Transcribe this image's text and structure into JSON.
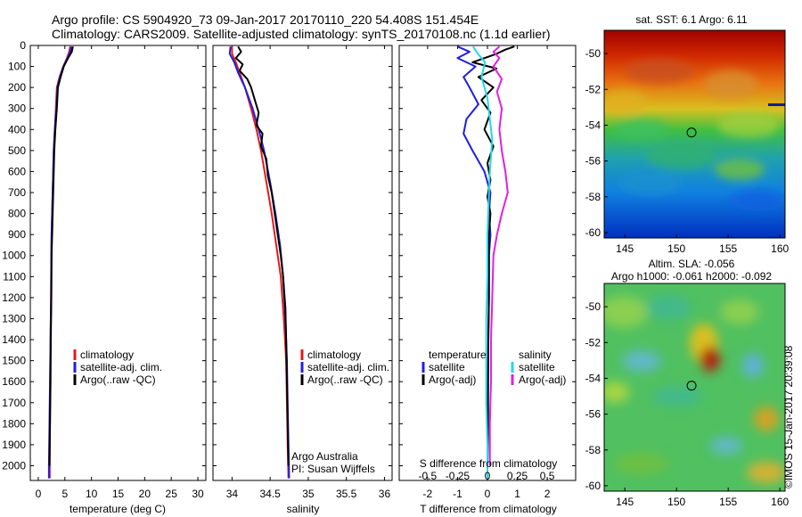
{
  "header": {
    "title_line1": "Argo profile: CS 5904920_73 09-Jan-2017 20170110_220 54.408S 151.454E",
    "title_line2": "Climatology: CARS2009. Satellite-adjusted climatology: synTS_20170108.nc (1.1d earlier)"
  },
  "credits": {
    "argo_australia": "Argo Australia",
    "pi": "PI: Susan Wijffels",
    "imos_stamp": "©IMOS 15-Jan-2017 20:39:08"
  },
  "depth_axis": {
    "ticks": [
      0,
      100,
      200,
      300,
      400,
      500,
      600,
      700,
      800,
      900,
      1000,
      1100,
      1200,
      1300,
      1400,
      1500,
      1600,
      1700,
      1800,
      1900,
      2000
    ],
    "range": [
      0,
      2070
    ]
  },
  "colors": {
    "climatology": "#e31a1c",
    "satellite_adj": "#1f1fe0",
    "argo": "#000000",
    "satellite_sal": "#22d8e8",
    "argo_sal": "#e020e0"
  },
  "chart_data": [
    {
      "type": "line",
      "id": "temperature",
      "xlabel": "temperature (deg C)",
      "xlim": [
        -1.5,
        31.5
      ],
      "xticks": [
        "0",
        "5",
        "10",
        "15",
        "20",
        "25",
        "30"
      ],
      "xtick_values": [
        0,
        5,
        10,
        15,
        20,
        25,
        30
      ],
      "ylim": [
        0,
        2070
      ],
      "y_reversed": true,
      "legend": [
        "climatology",
        "satellite-adj. clim.",
        "Argo(..raw -QC)"
      ],
      "series": [
        {
          "name": "climatology",
          "color": "#e31a1c",
          "points": [
            [
              6.0,
              5
            ],
            [
              5.8,
              30
            ],
            [
              5.4,
              60
            ],
            [
              4.7,
              100
            ],
            [
              4.0,
              150
            ],
            [
              3.5,
              200
            ],
            [
              3.3,
              300
            ],
            [
              3.1,
              400
            ],
            [
              2.9,
              500
            ],
            [
              2.8,
              600
            ],
            [
              2.7,
              700
            ],
            [
              2.6,
              800
            ],
            [
              2.5,
              900
            ],
            [
              2.45,
              1000
            ],
            [
              2.4,
              1200
            ],
            [
              2.3,
              1400
            ],
            [
              2.25,
              1600
            ],
            [
              2.2,
              1800
            ],
            [
              2.15,
              2000
            ],
            [
              2.15,
              2060
            ]
          ]
        },
        {
          "name": "satellite-adj. clim.",
          "color": "#1f1fe0",
          "points": [
            [
              6.2,
              5
            ],
            [
              6.0,
              30
            ],
            [
              5.5,
              60
            ],
            [
              4.7,
              100
            ],
            [
              4.1,
              150
            ],
            [
              3.6,
              200
            ],
            [
              3.4,
              300
            ],
            [
              3.1,
              400
            ],
            [
              2.9,
              500
            ],
            [
              2.8,
              600
            ],
            [
              2.7,
              700
            ],
            [
              2.6,
              800
            ],
            [
              2.5,
              900
            ],
            [
              2.45,
              1000
            ],
            [
              2.4,
              1200
            ],
            [
              2.3,
              1400
            ],
            [
              2.2,
              1600
            ],
            [
              2.1,
              1800
            ],
            [
              2.0,
              2000
            ],
            [
              2.0,
              2060
            ]
          ]
        },
        {
          "name": "Argo(..raw -QC)",
          "color": "#000000",
          "points": [
            [
              6.5,
              5
            ],
            [
              6.3,
              30
            ],
            [
              5.6,
              60
            ],
            [
              4.8,
              100
            ],
            [
              4.2,
              150
            ],
            [
              3.7,
              200
            ],
            [
              3.5,
              300
            ],
            [
              3.2,
              400
            ],
            [
              3.0,
              500
            ],
            [
              2.9,
              600
            ],
            [
              2.8,
              700
            ],
            [
              2.7,
              800
            ],
            [
              2.6,
              900
            ],
            [
              2.5,
              1000
            ],
            [
              2.45,
              1200
            ],
            [
              2.35,
              1400
            ],
            [
              2.3,
              1600
            ],
            [
              2.2,
              1800
            ],
            [
              2.1,
              2000
            ]
          ]
        }
      ]
    },
    {
      "type": "line",
      "id": "salinity",
      "xlabel": "salinity",
      "xlim": [
        33.75,
        36.1
      ],
      "xticks": [
        "34",
        "34.5",
        "35",
        "35.5",
        "36"
      ],
      "xtick_values": [
        34,
        34.5,
        35,
        35.5,
        36
      ],
      "ylim": [
        0,
        2070
      ],
      "y_reversed": true,
      "legend": [
        "climatology",
        "satellite-adj. clim.",
        "Argo(..raw -QC)"
      ],
      "series": [
        {
          "name": "climatology",
          "color": "#e31a1c",
          "points": [
            [
              34.0,
              5
            ],
            [
              34.0,
              40
            ],
            [
              34.05,
              80
            ],
            [
              34.1,
              130
            ],
            [
              34.17,
              200
            ],
            [
              34.25,
              300
            ],
            [
              34.32,
              400
            ],
            [
              34.38,
              500
            ],
            [
              34.45,
              650
            ],
            [
              34.52,
              800
            ],
            [
              34.58,
              950
            ],
            [
              34.64,
              1100
            ],
            [
              34.68,
              1300
            ],
            [
              34.71,
              1500
            ],
            [
              34.72,
              1700
            ],
            [
              34.73,
              1900
            ],
            [
              34.74,
              2060
            ]
          ]
        },
        {
          "name": "satellite-adj. clim.",
          "color": "#1f1fe0",
          "points": [
            [
              33.98,
              5
            ],
            [
              33.97,
              40
            ],
            [
              34.03,
              80
            ],
            [
              34.08,
              130
            ],
            [
              34.17,
              200
            ],
            [
              34.27,
              300
            ],
            [
              34.35,
              400
            ],
            [
              34.42,
              500
            ],
            [
              34.5,
              650
            ],
            [
              34.57,
              800
            ],
            [
              34.63,
              950
            ],
            [
              34.67,
              1100
            ],
            [
              34.7,
              1300
            ],
            [
              34.72,
              1500
            ],
            [
              34.73,
              1700
            ],
            [
              34.74,
              1900
            ],
            [
              34.75,
              2060
            ]
          ]
        },
        {
          "name": "Argo(..raw -QC)",
          "color": "#000000",
          "points": [
            [
              34.08,
              5
            ],
            [
              34.12,
              30
            ],
            [
              34.05,
              60
            ],
            [
              34.14,
              90
            ],
            [
              34.1,
              120
            ],
            [
              34.2,
              160
            ],
            [
              34.25,
              200
            ],
            [
              34.3,
              260
            ],
            [
              34.35,
              320
            ],
            [
              34.32,
              380
            ],
            [
              34.4,
              420
            ],
            [
              34.38,
              480
            ],
            [
              34.45,
              540
            ],
            [
              34.47,
              620
            ],
            [
              34.52,
              700
            ],
            [
              34.56,
              800
            ],
            [
              34.6,
              900
            ],
            [
              34.64,
              1000
            ],
            [
              34.67,
              1100
            ],
            [
              34.7,
              1250
            ],
            [
              34.71,
              1400
            ],
            [
              34.72,
              1600
            ],
            [
              34.73,
              1800
            ],
            [
              34.74,
              2000
            ]
          ]
        }
      ]
    },
    {
      "type": "line",
      "id": "difference",
      "xlabel": "T difference from climatology",
      "xlim": [
        -2.95,
        2.95
      ],
      "xticks": [
        "-2",
        "-1",
        "0",
        "1",
        "2"
      ],
      "xtick_values": [
        -2,
        -1,
        0,
        1,
        2
      ],
      "x2label": "S difference from climatology",
      "x2ticks": [
        "-0.5",
        "-0.25",
        "0",
        "0.25",
        "0.5"
      ],
      "x2tick_values": [
        -0.5,
        -0.25,
        0,
        0.25,
        0.5
      ],
      "x2lim": [
        -0.7375,
        0.7375
      ],
      "ylim": [
        0,
        2070
      ],
      "y_reversed": true,
      "legend_temperature_title": "temperature",
      "legend_salinity_title": "salinity",
      "legend_temperature": [
        "satellite",
        "Argo(-adj)"
      ],
      "legend_salinity": [
        "satellite",
        "Argo(-adj)"
      ],
      "series": [
        {
          "name": "satellite",
          "group": "temperature",
          "color": "#1f1fe0",
          "points": [
            [
              -1.0,
              5
            ],
            [
              -0.6,
              30
            ],
            [
              -1.0,
              60
            ],
            [
              -0.4,
              100
            ],
            [
              -0.8,
              150
            ],
            [
              -0.6,
              200
            ],
            [
              -0.3,
              280
            ],
            [
              -0.7,
              350
            ],
            [
              -0.8,
              420
            ],
            [
              -0.5,
              500
            ],
            [
              -0.1,
              600
            ],
            [
              0.1,
              700
            ],
            [
              0.05,
              800
            ],
            [
              0.1,
              900
            ],
            [
              0.05,
              1000
            ],
            [
              0.05,
              1200
            ],
            [
              0.03,
              1400
            ],
            [
              0.02,
              1600
            ],
            [
              0.0,
              1800
            ],
            [
              0.0,
              2000
            ],
            [
              0.0,
              2060
            ]
          ]
        },
        {
          "name": "Argo(-adj)",
          "group": "temperature",
          "color": "#000000",
          "points": [
            [
              0.9,
              5
            ],
            [
              0.6,
              20
            ],
            [
              0.3,
              40
            ],
            [
              -0.5,
              80
            ],
            [
              0.3,
              110
            ],
            [
              -0.3,
              150
            ],
            [
              0.2,
              200
            ],
            [
              -0.2,
              260
            ],
            [
              0.1,
              320
            ],
            [
              -0.1,
              400
            ],
            [
              0.2,
              480
            ],
            [
              0.0,
              560
            ],
            [
              0.1,
              640
            ],
            [
              0.0,
              720
            ],
            [
              0.1,
              800
            ],
            [
              0.05,
              900
            ],
            [
              0.05,
              1000
            ],
            [
              0.05,
              1200
            ],
            [
              0.03,
              1400
            ],
            [
              0.02,
              1600
            ],
            [
              0.02,
              1800
            ],
            [
              0.0,
              2000
            ]
          ]
        },
        {
          "name": "satellite",
          "group": "salinity",
          "color": "#22d8e8",
          "points": [
            [
              -0.12,
              5
            ],
            [
              -0.08,
              40
            ],
            [
              -0.02,
              80
            ],
            [
              -0.05,
              150
            ],
            [
              0.0,
              250
            ],
            [
              0.02,
              350
            ],
            [
              0.04,
              450
            ],
            [
              0.02,
              600
            ],
            [
              0.01,
              750
            ],
            [
              0.0,
              900
            ],
            [
              0.0,
              1100
            ],
            [
              -0.01,
              1300
            ],
            [
              -0.01,
              1500
            ],
            [
              -0.01,
              1700
            ],
            [
              0.0,
              1900
            ],
            [
              0.0,
              2060
            ]
          ]
        },
        {
          "name": "Argo(-adj)",
          "group": "salinity",
          "color": "#e020e0",
          "points": [
            [
              0.1,
              5
            ],
            [
              0.05,
              30
            ],
            [
              0.1,
              60
            ],
            [
              0.05,
              100
            ],
            [
              0.12,
              160
            ],
            [
              0.08,
              220
            ],
            [
              0.12,
              300
            ],
            [
              0.1,
              400
            ],
            [
              0.12,
              500
            ],
            [
              0.15,
              600
            ],
            [
              0.17,
              700
            ],
            [
              0.12,
              800
            ],
            [
              0.08,
              900
            ],
            [
              0.05,
              1000
            ],
            [
              0.04,
              1200
            ],
            [
              0.03,
              1400
            ],
            [
              0.03,
              1600
            ],
            [
              0.02,
              1800
            ],
            [
              0.02,
              2000
            ]
          ]
        }
      ]
    },
    {
      "type": "heatmap",
      "id": "sst_map",
      "title": "sat. SST: 6.1 Argo: 6.11",
      "xlim": [
        143,
        160.5
      ],
      "ylim": [
        -60.3,
        -48.7
      ],
      "xticks": [
        "145",
        "150",
        "155",
        "160"
      ],
      "xtick_values": [
        145,
        150,
        155,
        160
      ],
      "yticks": [
        "-50",
        "-52",
        "-54",
        "-56",
        "-58",
        "-60"
      ],
      "ytick_values": [
        -50,
        -52,
        -54,
        -56,
        -58,
        -60
      ],
      "marker": {
        "lon": 151.454,
        "lat": -54.408
      }
    },
    {
      "type": "heatmap",
      "id": "sla_map",
      "title": "Altim. SLA: -0.056",
      "subtitle": "Argo h1000: -0.061 h2000: -0.092",
      "xlim": [
        143,
        160.5
      ],
      "ylim": [
        -60.3,
        -48.7
      ],
      "xticks": [
        "145",
        "150",
        "155",
        "160"
      ],
      "xtick_values": [
        145,
        150,
        155,
        160
      ],
      "yticks": [
        "-50",
        "-52",
        "-54",
        "-56",
        "-58",
        "-60"
      ],
      "ytick_values": [
        -50,
        -52,
        -54,
        -56,
        -58,
        -60
      ],
      "marker": {
        "lon": 151.454,
        "lat": -54.408
      }
    }
  ]
}
